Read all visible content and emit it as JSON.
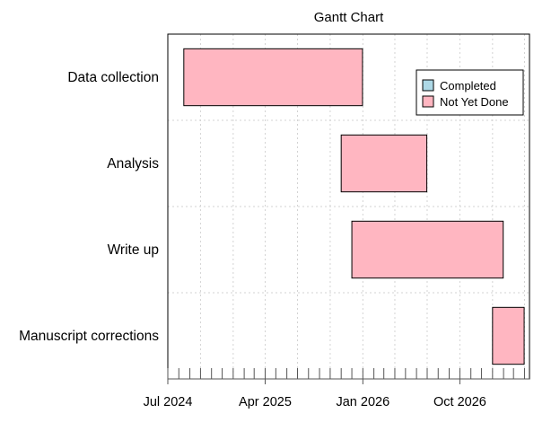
{
  "chart_data": {
    "type": "gantt",
    "title": "Gantt Chart",
    "tasks": [
      {
        "name": "Data collection",
        "start": "2024-08-15",
        "end": "2025-12-31",
        "status": "Not Yet Done"
      },
      {
        "name": "Analysis",
        "start": "2025-11-01",
        "end": "2026-06-30",
        "status": "Not Yet Done"
      },
      {
        "name": "Write up",
        "start": "2025-12-01",
        "end": "2027-01-31",
        "status": "Not Yet Done"
      },
      {
        "name": "Manuscript corrections",
        "start": "2027-01-01",
        "end": "2027-03-31",
        "status": "Not Yet Done"
      }
    ],
    "xlim": [
      "2024-07-01",
      "2027-04-15"
    ],
    "x_ticks": [
      {
        "date": "2024-07-01",
        "label": "Jul 2024"
      },
      {
        "date": "2025-04-01",
        "label": "Apr 2025"
      },
      {
        "date": "2026-01-01",
        "label": "Jan 2026"
      },
      {
        "date": "2026-10-01",
        "label": "Oct 2026"
      }
    ],
    "grid": true,
    "legend": {
      "position": "top-right",
      "entries": [
        {
          "label": "Completed",
          "color": "#add8e6"
        },
        {
          "label": "Not Yet Done",
          "color": "#ffb6c1"
        }
      ]
    },
    "colors": {
      "Completed": "#add8e6",
      "Not Yet Done": "#ffb6c1"
    }
  }
}
